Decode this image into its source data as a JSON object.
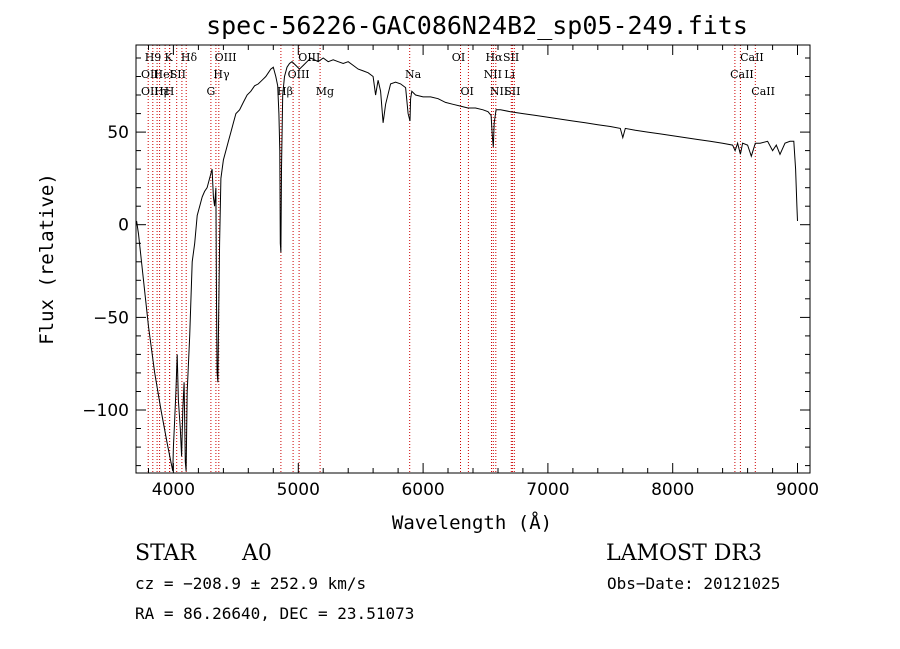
{
  "chart_data": {
    "type": "line",
    "title": "spec-56226-GAC086N24B2_sp05-249.fits",
    "xlabel": "Wavelength (Å)",
    "ylabel": "Flux (relative)",
    "xlim": [
      3700,
      9100
    ],
    "ylim": [
      -134,
      97
    ],
    "x_ticks": [
      4000,
      5000,
      6000,
      7000,
      8000,
      9000
    ],
    "y_ticks": [
      -100,
      -50,
      0,
      50
    ],
    "grid": false,
    "line_color": "#000000",
    "marker_color": "#cc0000",
    "series": [
      {
        "x": [
          3705,
          3720,
          3760,
          3800,
          3850,
          3900,
          3950,
          3980,
          3995,
          4000,
          4010,
          4020,
          4030,
          4040,
          4055,
          4065,
          4075,
          4085,
          4095,
          4101,
          4110,
          4130,
          4150,
          4170,
          4190,
          4210,
          4230,
          4250,
          4270,
          4290,
          4310,
          4320,
          4330,
          4340,
          4345,
          4350,
          4356,
          4360,
          4370,
          4380,
          4400,
          4420,
          4440,
          4460,
          4480,
          4500,
          4530,
          4560,
          4590,
          4620,
          4650,
          4680,
          4710,
          4740,
          4760,
          4780,
          4800,
          4820,
          4835,
          4845,
          4852,
          4856,
          4861,
          4866,
          4875,
          4890,
          4910,
          4930,
          4950,
          4980,
          5010,
          5040,
          5070,
          5100,
          5130,
          5160,
          5200,
          5240,
          5280,
          5320,
          5360,
          5400,
          5440,
          5480,
          5520,
          5560,
          5600,
          5620,
          5640,
          5660,
          5680,
          5700,
          5740,
          5780,
          5820,
          5860,
          5880,
          5895,
          5900,
          5910,
          5940,
          6000,
          6060,
          6120,
          6180,
          6240,
          6300,
          6360,
          6420,
          6480,
          6520,
          6545,
          6555,
          6563,
          6570,
          6585,
          6620,
          6700,
          6800,
          6900,
          7000,
          7100,
          7200,
          7300,
          7400,
          7500,
          7580,
          7600,
          7620,
          7700,
          7800,
          7900,
          8000,
          8100,
          8200,
          8300,
          8400,
          8480,
          8500,
          8520,
          8542,
          8560,
          8600,
          8630,
          8662,
          8700,
          8760,
          8800,
          8830,
          8860,
          8900,
          8940,
          8970,
          8985,
          8995,
          9000
        ],
        "y": [
          2,
          -5,
          -30,
          -55,
          -80,
          -100,
          -118,
          -128,
          -133,
          -120,
          -105,
          -90,
          -70,
          -95,
          -110,
          -125,
          -100,
          -85,
          -128,
          -133,
          -90,
          -60,
          -20,
          -10,
          5,
          10,
          15,
          18,
          20,
          25,
          30,
          15,
          10,
          20,
          -40,
          -80,
          -85,
          -60,
          -10,
          25,
          35,
          40,
          45,
          50,
          55,
          60,
          62,
          66,
          70,
          72,
          75,
          76,
          78,
          80,
          82,
          84,
          85,
          80,
          75,
          60,
          40,
          -10,
          -15,
          30,
          70,
          80,
          85,
          87,
          88,
          86,
          84,
          86,
          88,
          90,
          89,
          88,
          90,
          88,
          89,
          88,
          87,
          88,
          86,
          84,
          83,
          82,
          80,
          70,
          78,
          72,
          55,
          65,
          76,
          77,
          76,
          74,
          60,
          56,
          68,
          72,
          70,
          69,
          69,
          68,
          66,
          65,
          64,
          63,
          63,
          62,
          61,
          59,
          48,
          42,
          55,
          62,
          62,
          61,
          60,
          59,
          58,
          57,
          56,
          55,
          54,
          53,
          52,
          47,
          52,
          51,
          50,
          49,
          48,
          47,
          46,
          45,
          44,
          43,
          40,
          44,
          38,
          44,
          43,
          37,
          44,
          44,
          45,
          40,
          43,
          38,
          44,
          45,
          45,
          30,
          10,
          2
        ]
      }
    ],
    "line_markers": [
      {
        "wavelength": 3798,
        "label": ""
      },
      {
        "wavelength": 3835,
        "label": "H9"
      },
      {
        "wavelength": 3869,
        "label": ""
      },
      {
        "wavelength": 3889,
        "label": ""
      },
      {
        "wavelength": 3933,
        "label": "K"
      },
      {
        "wavelength": 3968,
        "label": ""
      },
      {
        "wavelength": 3970,
        "label": ""
      },
      {
        "wavelength": 4026,
        "label": ""
      },
      {
        "wavelength": 4068,
        "label": ""
      },
      {
        "wavelength": 4102,
        "label": "Hδ"
      },
      {
        "wavelength": 4300,
        "label": "G"
      },
      {
        "wavelength": 4340,
        "label": "Hγ"
      },
      {
        "wavelength": 4363,
        "label": "OIII"
      },
      {
        "wavelength": 4861,
        "label": "Hβ"
      },
      {
        "wavelength": 4959,
        "label": "OIII"
      },
      {
        "wavelength": 5007,
        "label": "OIII"
      },
      {
        "wavelength": 5175,
        "label": "Mg"
      },
      {
        "wavelength": 5893,
        "label": "Na"
      },
      {
        "wavelength": 6300,
        "label": "OI"
      },
      {
        "wavelength": 6363,
        "label": "OI"
      },
      {
        "wavelength": 6548,
        "label": "NII"
      },
      {
        "wavelength": 6563,
        "label": "Hα"
      },
      {
        "wavelength": 6583,
        "label": "NII"
      },
      {
        "wavelength": 6707,
        "label": "Li"
      },
      {
        "wavelength": 6716,
        "label": "SII"
      },
      {
        "wavelength": 6731,
        "label": "SII"
      },
      {
        "wavelength": 8498,
        "label": "CaII"
      },
      {
        "wavelength": 8542,
        "label": "CaII"
      },
      {
        "wavelength": 8662,
        "label": "CaII"
      }
    ],
    "marker_label_rows": [
      {
        "text": "H9",
        "wavelength": 3770,
        "row": 1
      },
      {
        "text": "K",
        "wavelength": 3928,
        "row": 1
      },
      {
        "text": "Hδ",
        "wavelength": 4060,
        "row": 1
      },
      {
        "text": "OIII",
        "wavelength": 4330,
        "row": 1
      },
      {
        "text": "OIII",
        "wavelength": 5000,
        "row": 1
      },
      {
        "text": "OI",
        "wavelength": 6230,
        "row": 1
      },
      {
        "text": "Hα",
        "wavelength": 6500,
        "row": 1
      },
      {
        "text": "SII",
        "wavelength": 6640,
        "row": 1
      },
      {
        "text": "CaII",
        "wavelength": 8540,
        "row": 1
      },
      {
        "text": "OII",
        "wavelength": 3740,
        "row": 2
      },
      {
        "text": "HeI",
        "wavelength": 3840,
        "row": 2
      },
      {
        "text": "SII",
        "wavelength": 3970,
        "row": 2
      },
      {
        "text": "Hγ",
        "wavelength": 4320,
        "row": 2
      },
      {
        "text": "OIII",
        "wavelength": 4915,
        "row": 2
      },
      {
        "text": "Na",
        "wavelength": 5855,
        "row": 2
      },
      {
        "text": "NII",
        "wavelength": 6485,
        "row": 2
      },
      {
        "text": "Li",
        "wavelength": 6650,
        "row": 2
      },
      {
        "text": "CaII",
        "wavelength": 8460,
        "row": 2
      },
      {
        "text": "OII",
        "wavelength": 3740,
        "row": 3
      },
      {
        "text": "Hε",
        "wavelength": 3845,
        "row": 3
      },
      {
        "text": "η",
        "wavelength": 3890,
        "row": 3
      },
      {
        "text": "H",
        "wavelength": 3930,
        "row": 3
      },
      {
        "text": "G",
        "wavelength": 4265,
        "row": 3
      },
      {
        "text": "Hβ",
        "wavelength": 4830,
        "row": 3
      },
      {
        "text": "Mg",
        "wavelength": 5140,
        "row": 3
      },
      {
        "text": "OI",
        "wavelength": 6300,
        "row": 3
      },
      {
        "text": "NII",
        "wavelength": 6535,
        "row": 3
      },
      {
        "text": "SII",
        "wavelength": 6650,
        "row": 3
      },
      {
        "text": "CaII",
        "wavelength": 8630,
        "row": 3
      }
    ]
  },
  "info": {
    "object_class": "STAR",
    "subclass": "A0",
    "survey": "LAMOST DR3",
    "cz": "cz = −208.9 ± 252.9 km/s",
    "obs_date": "Obs−Date: 20121025",
    "coords": "RA =  86.26640, DEC =  23.51073"
  }
}
